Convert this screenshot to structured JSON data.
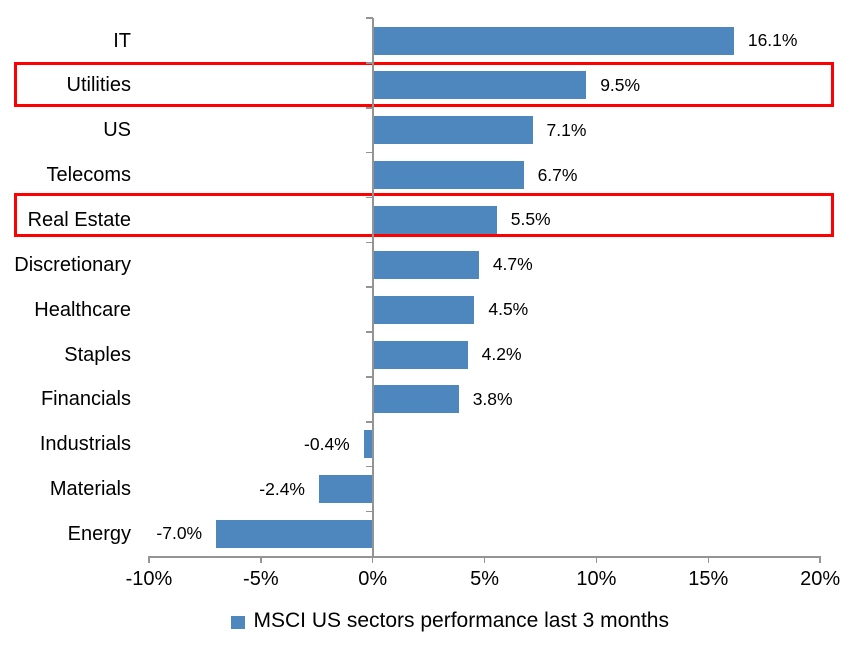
{
  "chart_data": {
    "type": "bar",
    "orientation": "horizontal",
    "title": "",
    "xlabel": "",
    "ylabel": "",
    "categories": [
      "IT",
      "Utilities",
      "US",
      "Telecoms",
      "Real Estate",
      "Discretionary",
      "Healthcare",
      "Staples",
      "Financials",
      "Industrials",
      "Materials",
      "Energy"
    ],
    "values": [
      16.1,
      9.5,
      7.1,
      6.7,
      5.5,
      4.7,
      4.5,
      4.2,
      3.8,
      -0.4,
      -2.4,
      -7.0
    ],
    "value_labels": [
      "16.1%",
      "9.5%",
      "7.1%",
      "6.7%",
      "5.5%",
      "4.7%",
      "4.5%",
      "4.2%",
      "3.8%",
      "-0.4%",
      "-2.4%",
      "-7.0%"
    ],
    "highlighted_categories": [
      "Utilities",
      "Real Estate"
    ],
    "x_ticks": [
      "-10%",
      "-5%",
      "0%",
      "5%",
      "10%",
      "15%",
      "20%"
    ],
    "x_tick_values": [
      -10,
      -5,
      0,
      5,
      10,
      15,
      20
    ],
    "xlim": [
      -10,
      20
    ],
    "grid": false,
    "legend": "MSCI US sectors performance last 3 months",
    "legend_position": "bottom-center",
    "colors": {
      "bar": "#4E86BE",
      "highlight_border": "#FF0000",
      "axis": "#949494",
      "text": "#000000",
      "background": "#FFFFFF"
    }
  }
}
